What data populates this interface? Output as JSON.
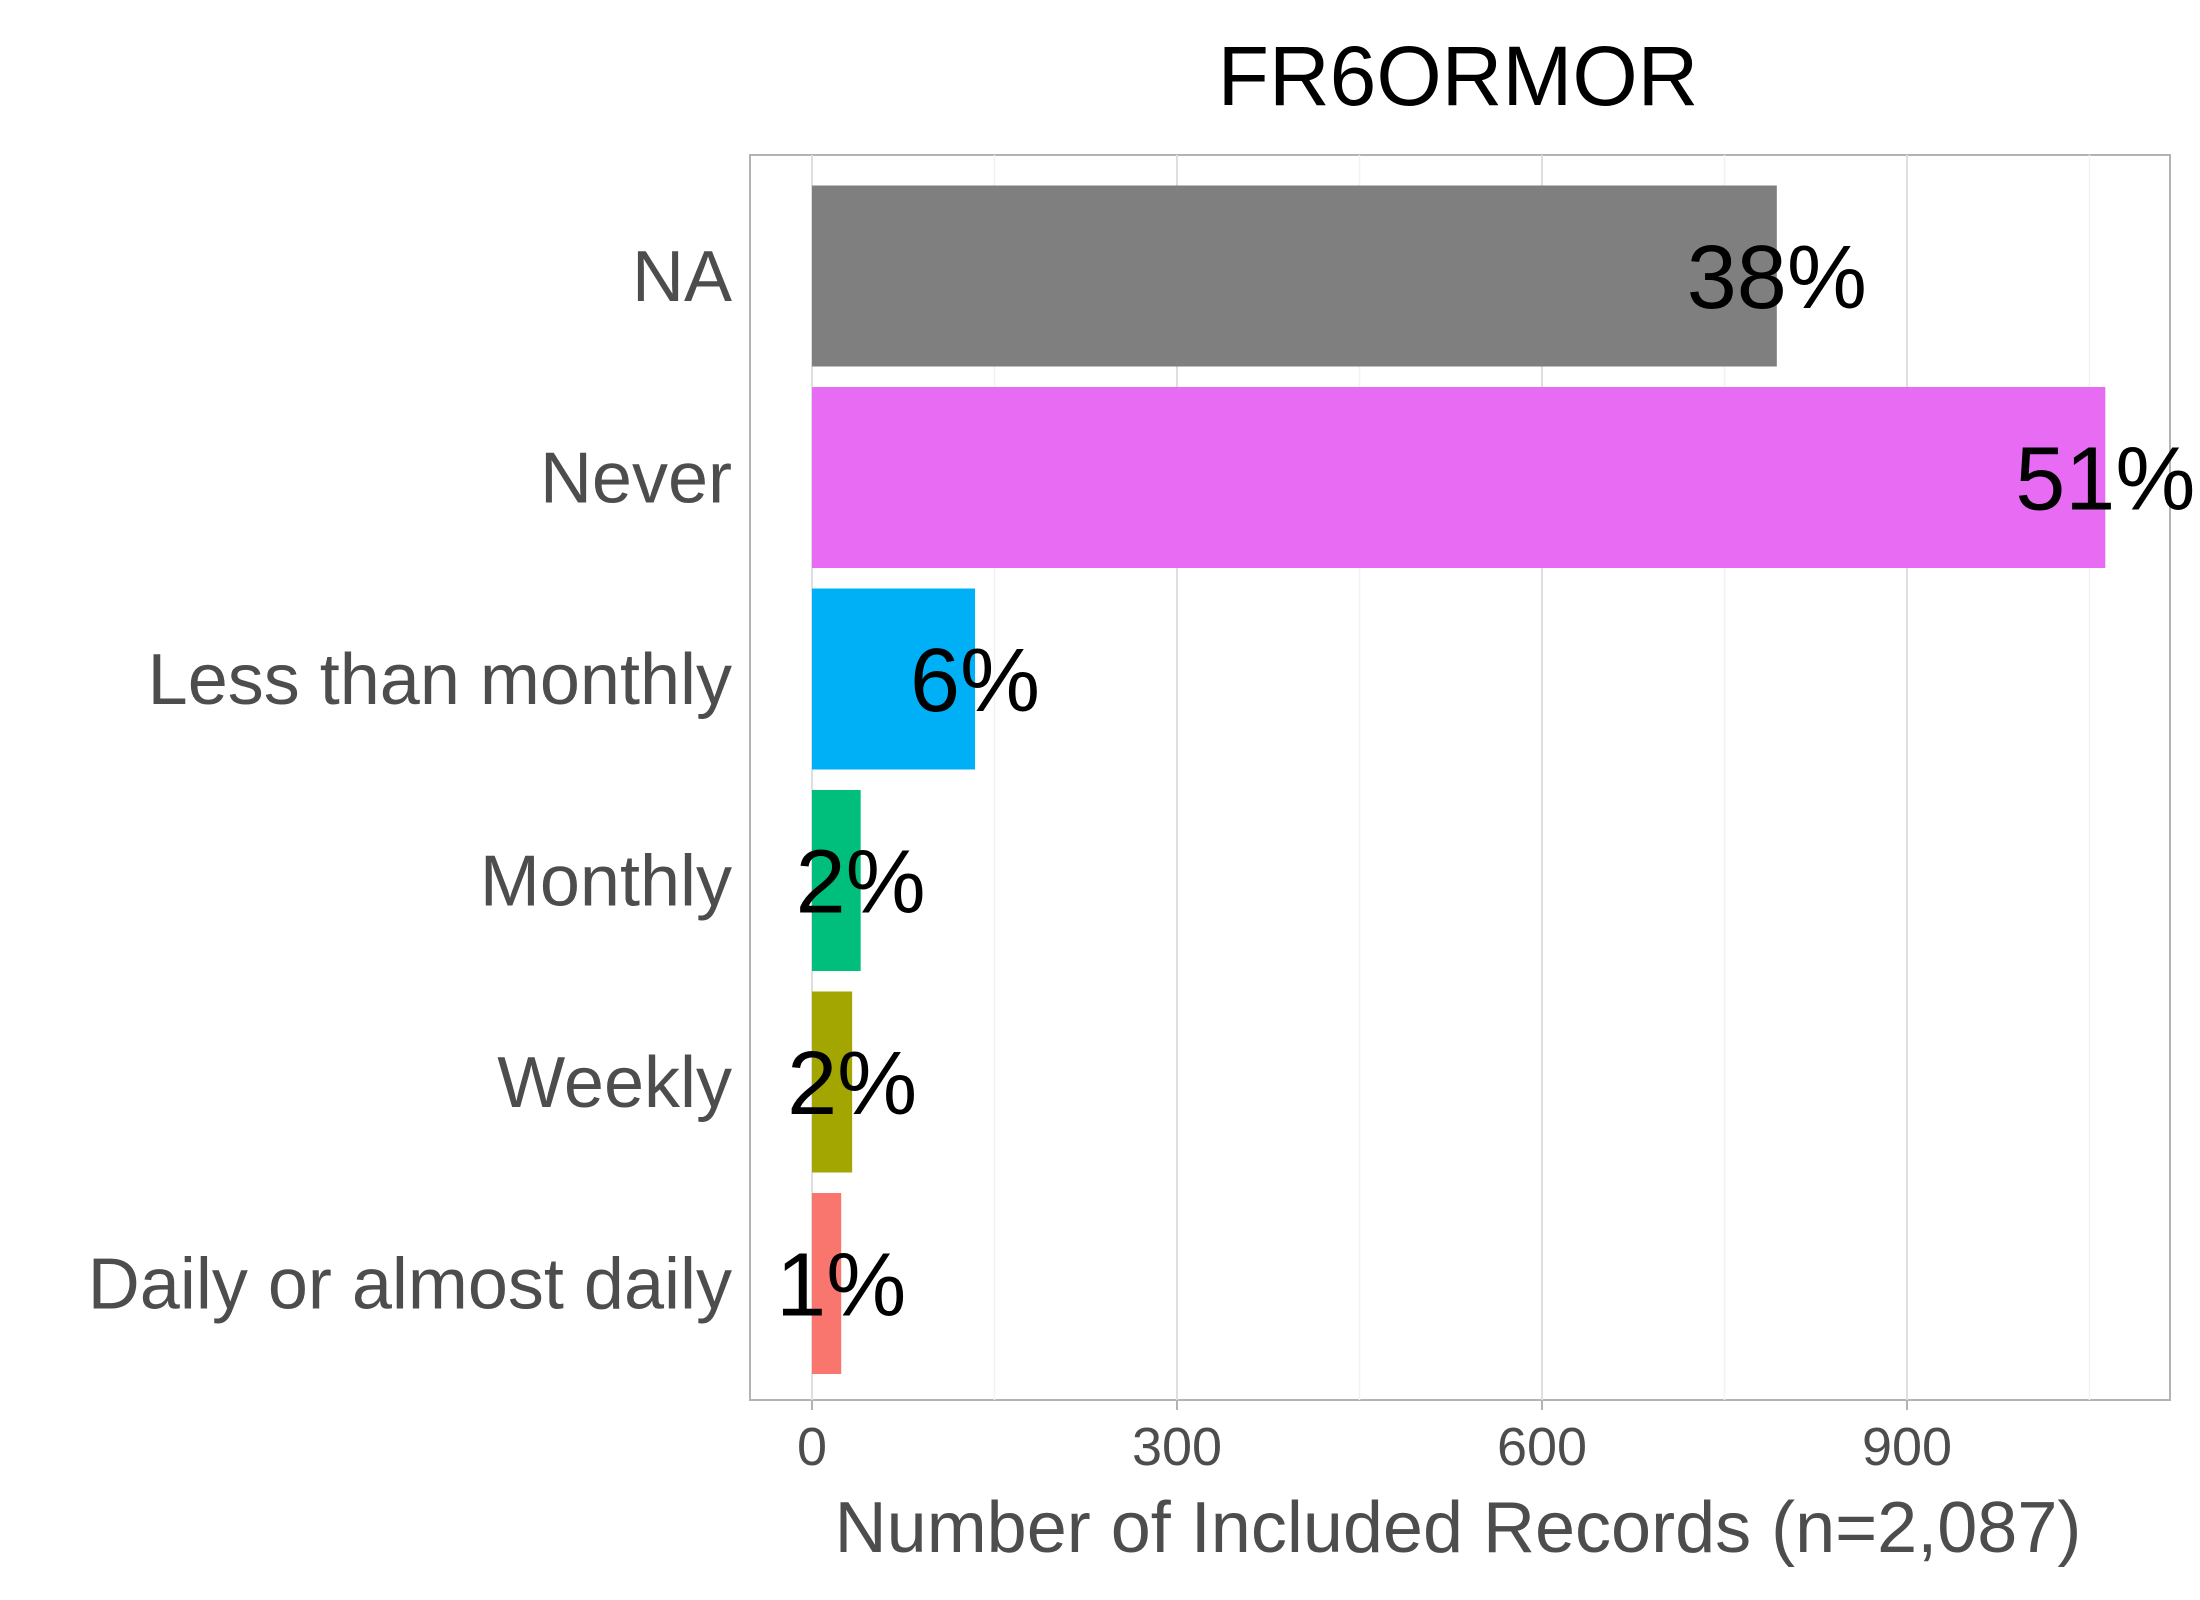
{
  "chart_data": {
    "type": "bar",
    "orientation": "horizontal",
    "title": "FR6ORMOR",
    "xlabel": "Number of Included Records (n=2,087)",
    "ylabel": "",
    "xlim": [
      -170,
      3710
    ],
    "xticks": [
      0,
      300,
      600,
      900
    ],
    "grid": true,
    "legend": "none",
    "categories": [
      "NA",
      "Never",
      "Less than monthly",
      "Monthly",
      "Weekly",
      "Daily or almost daily"
    ],
    "values": [
      793,
      1063,
      134,
      40,
      33,
      24
    ],
    "labels": [
      "38%",
      "51%",
      "6%",
      "2%",
      "2%",
      "1%"
    ],
    "colors": [
      "#7f7f7f",
      "#e76bf3",
      "#00b0f6",
      "#00bf7d",
      "#a3a500",
      "#f8766d"
    ]
  }
}
